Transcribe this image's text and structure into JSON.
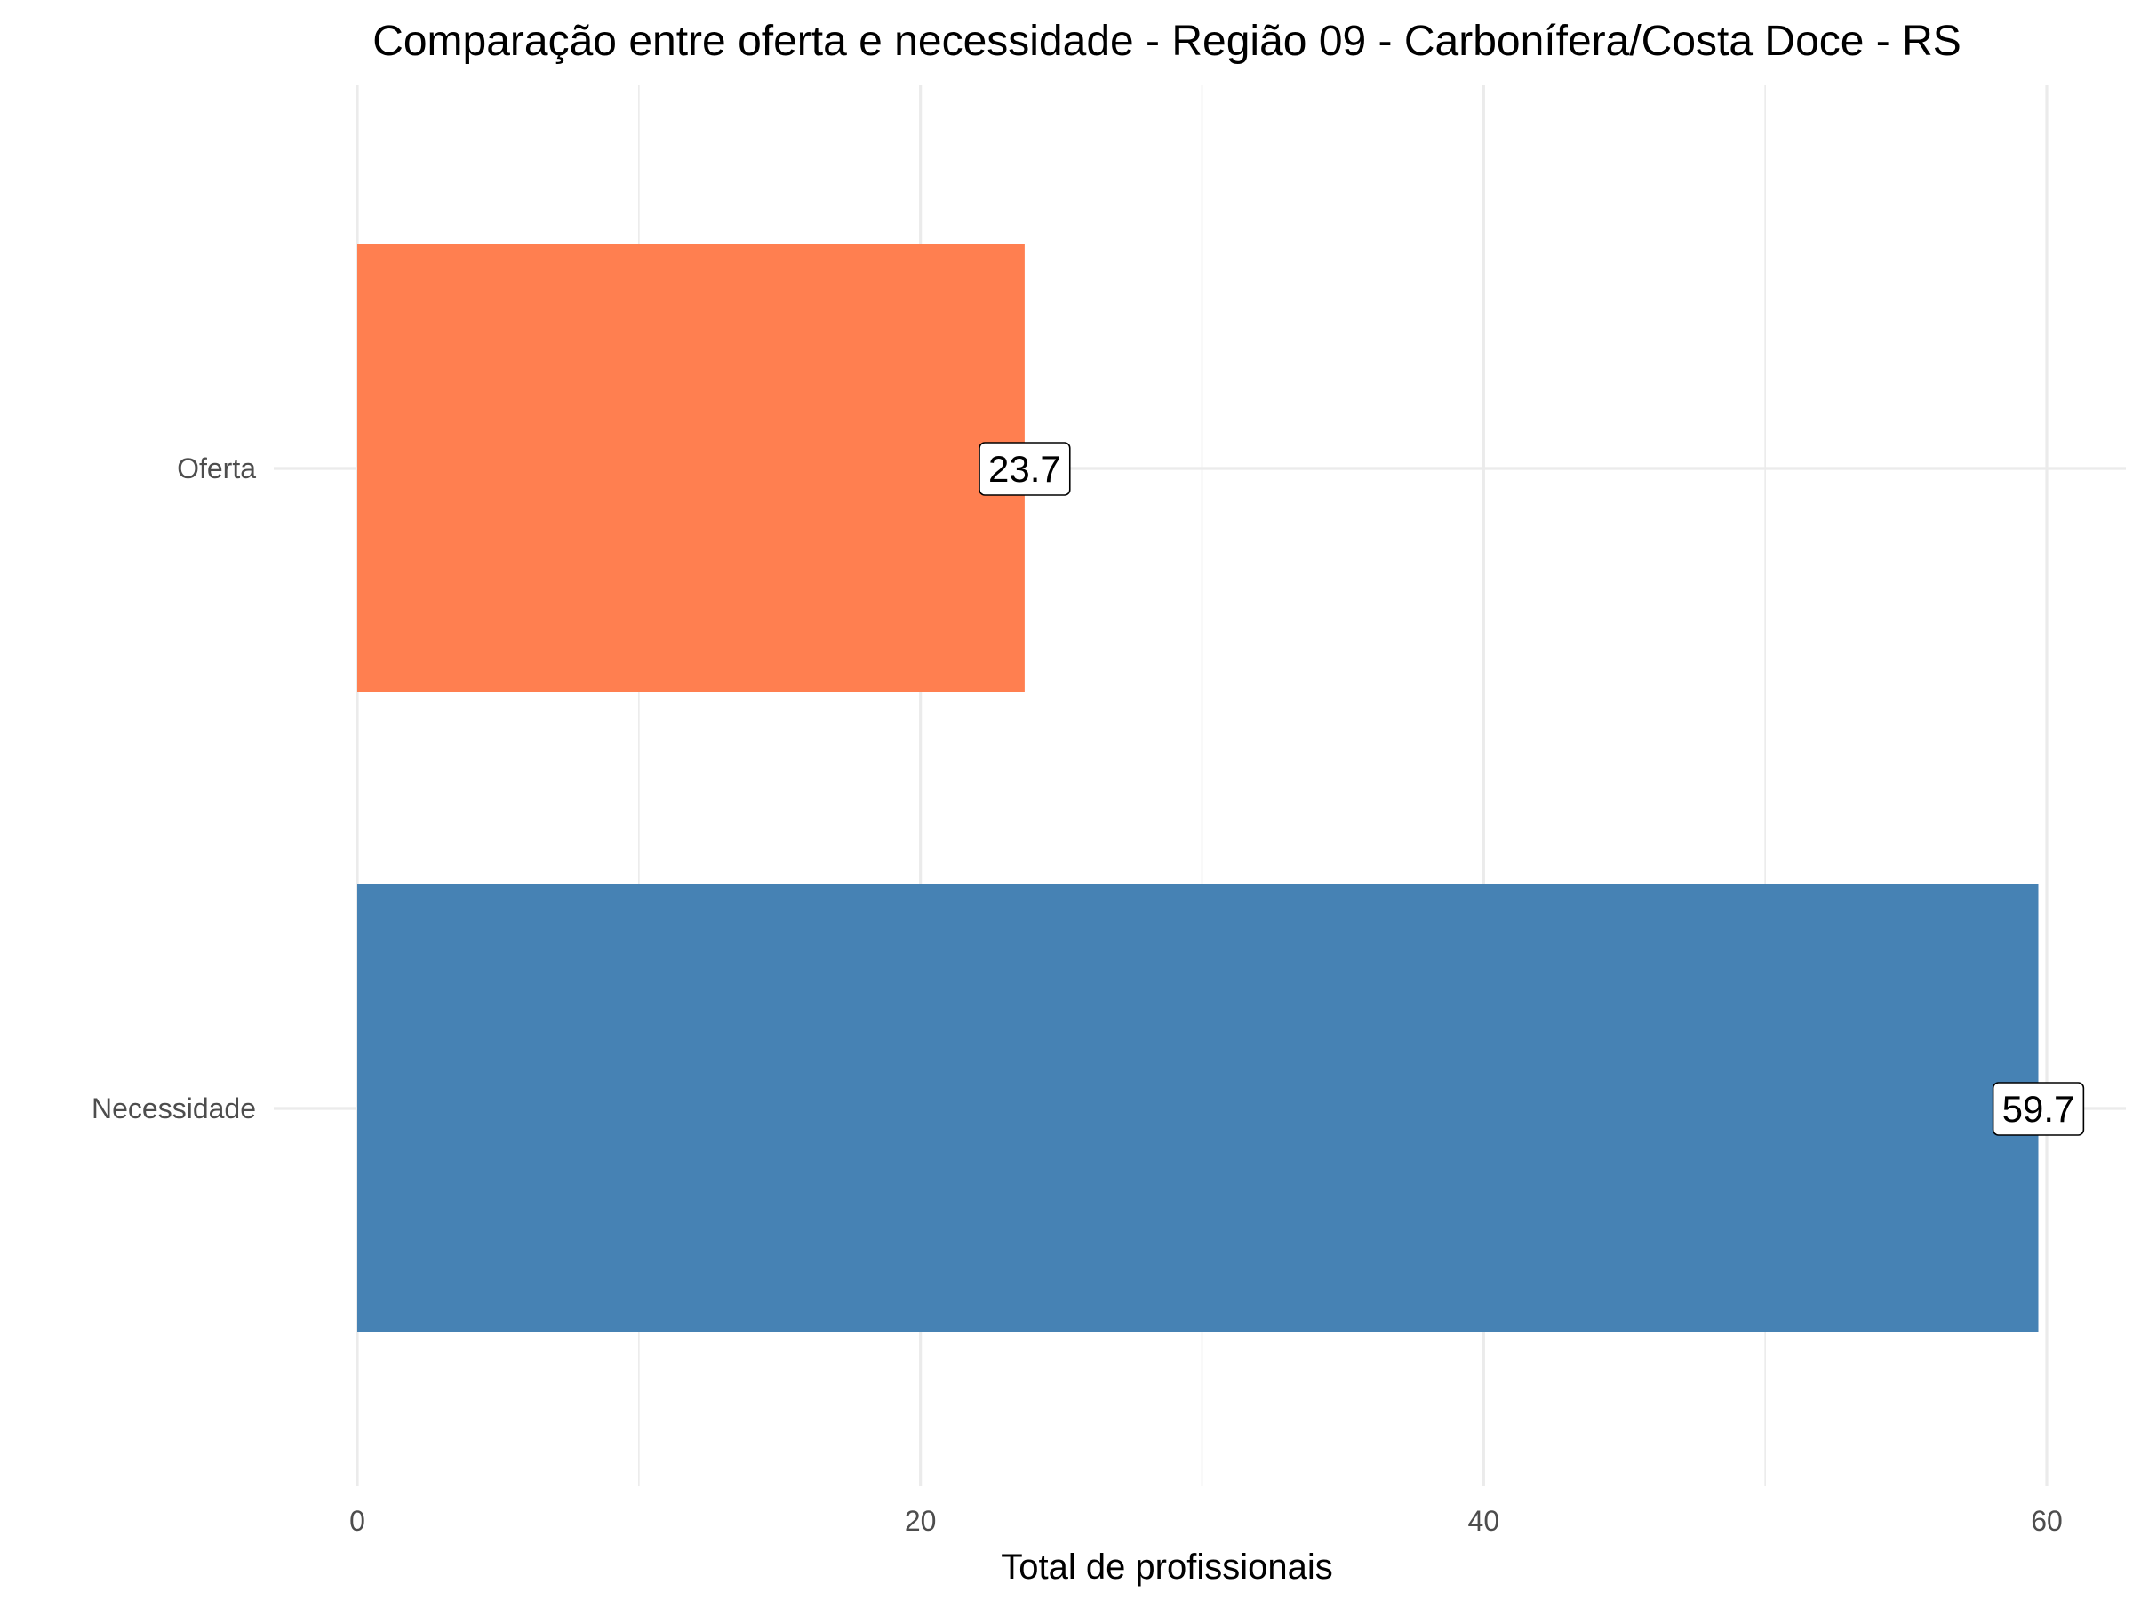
{
  "chart_data": {
    "type": "bar",
    "orientation": "horizontal",
    "title": "Comparação entre oferta e necessidade - Região 09 - Carbonífera/Costa Doce - RS",
    "xlabel": "Total de profissionais",
    "ylabel": "",
    "categories": [
      "Oferta",
      "Necessidade"
    ],
    "values": [
      23.7,
      59.7
    ],
    "value_labels": [
      "23.7",
      "59.7"
    ],
    "colors": [
      "#FF7F50",
      "#4682B4"
    ],
    "xlim": [
      0,
      62.7
    ],
    "x_ticks": [
      0,
      20,
      40,
      60
    ],
    "x_tick_labels": [
      "0",
      "20",
      "40",
      "60"
    ],
    "x_minor_ticks": [
      10,
      30,
      50
    ],
    "grid": true,
    "legend": "none"
  }
}
